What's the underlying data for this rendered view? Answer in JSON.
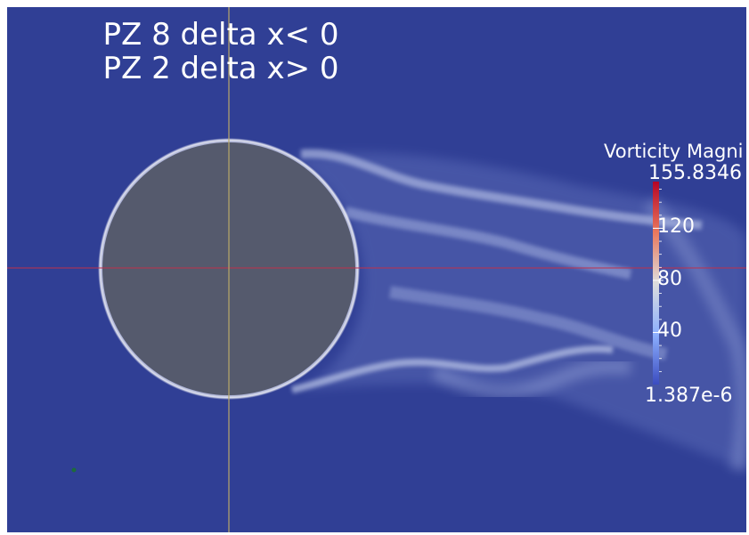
{
  "title": {
    "line1": "PZ 8 delta x< 0",
    "line2": "PZ 2 delta x> 0"
  },
  "colorbar": {
    "title": "Vorticity Magni",
    "max_label": "155.8346",
    "min_label": "1.387e-6",
    "max_value": 155.8346,
    "min_value": 1.387e-06,
    "ticks": [
      {
        "value": 120,
        "label": "120"
      },
      {
        "value": 80,
        "label": "80"
      },
      {
        "value": 40,
        "label": "40"
      }
    ],
    "colors": {
      "high": "#b40426",
      "mid": "#dddddd",
      "low": "#3b4cc0"
    }
  },
  "scene": {
    "background_color": "#303f95",
    "cylinder_color": "#555a6d",
    "crosshair_vertical_color": "#b9a96a",
    "crosshair_horizontal_color": "#c0304a"
  }
}
